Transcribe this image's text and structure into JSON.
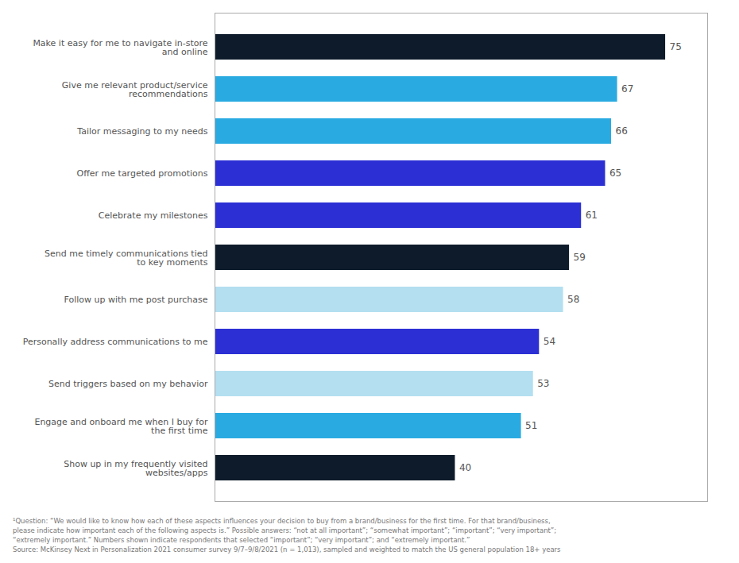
{
  "chart_data": {
    "type": "bar",
    "orientation": "horizontal",
    "categories": [
      "Make it easy for me to navigate in-store\nand online",
      "Give me relevant product/service\nrecommendations",
      "Tailor messaging to my needs",
      "Offer me targeted promotions",
      "Celebrate my milestones",
      "Send me timely communications tied\nto key moments",
      "Follow up with me post purchase",
      "Personally address communications to me",
      "Send triggers based on my behavior",
      "Engage and onboard me when I buy for\nthe first time",
      "Show up in my frequently visited\nwebsites/apps"
    ],
    "values": [
      75,
      67,
      66,
      65,
      61,
      59,
      58,
      54,
      53,
      51,
      40
    ],
    "colors": [
      "#0d1b2a",
      "#29abe2",
      "#29abe2",
      "#2b2fd4",
      "#2b2fd4",
      "#0d1b2a",
      "#b3dff0",
      "#2b2fd4",
      "#b3dff0",
      "#29abe2",
      "#0d1b2a"
    ],
    "xlim": [
      0,
      82
    ],
    "tick_labels": "y",
    "data_labels": true,
    "caption": "¹Question: “We would like to know how each of these aspects influences your decision to buy from a brand/business for the first time. For that brand/business,\nplease indicate how important each of the following aspects is.” Possible answers: “not at all important”; “somewhat important”; “important”; “very important”;\n“extremely important.” Numbers shown indicate respondents that selected “important”; “very important”; and “extremely important.”\n Source: McKinsey Next in Personalization 2021 consumer survey 9/7–9/8/2021 (n = 1,013), sampled and weighted to match the US general population 18+ years"
  }
}
